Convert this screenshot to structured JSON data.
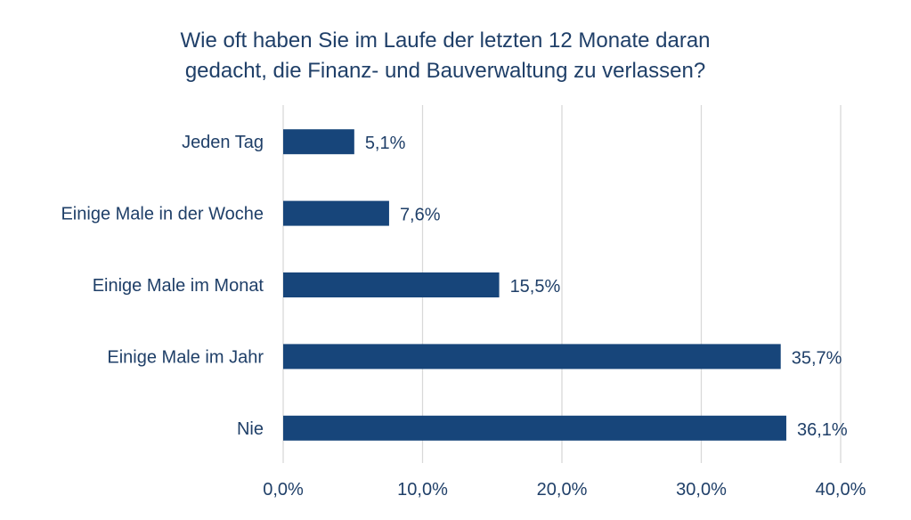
{
  "chart_data": {
    "type": "bar",
    "orientation": "horizontal",
    "title": [
      "Wie oft haben Sie im Laufe der letzten 12 Monate daran",
      "gedacht, die Finanz- und Bauverwaltung zu verlassen?"
    ],
    "categories": [
      "Jeden Tag",
      "Einige Male in der Woche",
      "Einige Male im Monat",
      "Einige Male im Jahr",
      "Nie"
    ],
    "values": [
      5.1,
      7.6,
      15.5,
      35.7,
      36.1
    ],
    "data_labels": [
      "5,1%",
      "7,6%",
      "15,5%",
      "35,7%",
      "36,1%"
    ],
    "xlim": [
      0,
      40
    ],
    "xticks": [
      0,
      10,
      20,
      30,
      40
    ],
    "xtick_labels": [
      "0,0%",
      "10,0%",
      "20,0%",
      "30,0%",
      "40,0%"
    ],
    "xlabel": "",
    "ylabel": "",
    "grid": "vertical",
    "colors": {
      "bar": "#17457a",
      "text": "#1f3f68",
      "grid": "#d9d9d9"
    }
  }
}
